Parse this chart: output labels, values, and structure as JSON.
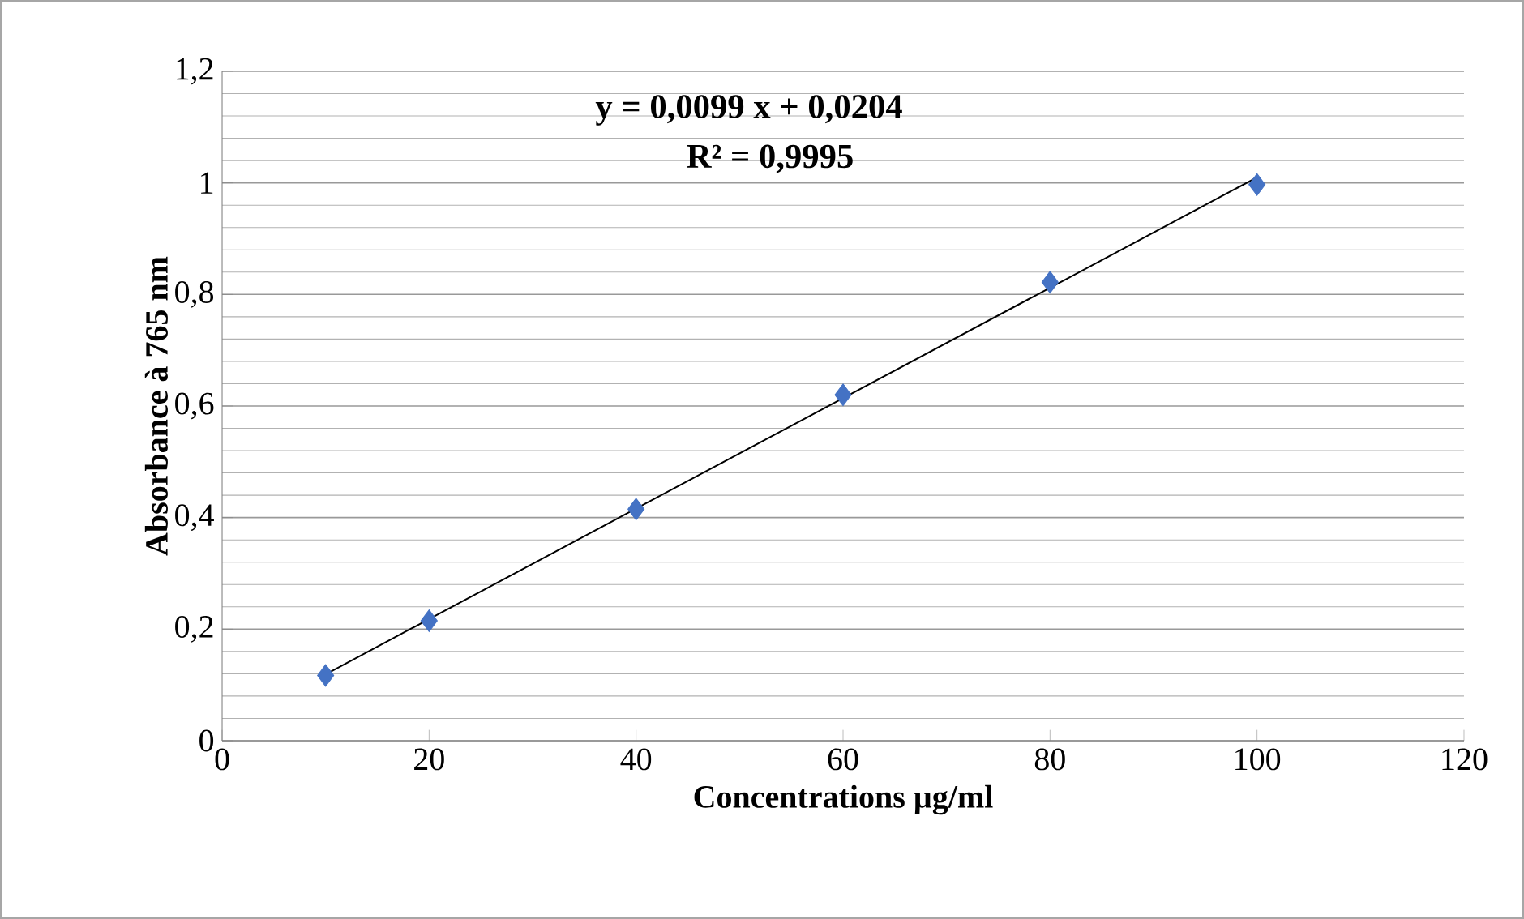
{
  "chart_data": {
    "type": "scatter",
    "xlabel": "Concentrations µg/ml",
    "ylabel": "Absorbance à 765 nm",
    "annotations": [
      "y = 0,0099 x + 0,0204",
      "R² = 0,9995"
    ],
    "series": [
      {
        "color": "#4472c4",
        "marker": "diamond",
        "x": [
          10,
          20,
          40,
          60,
          80,
          100
        ],
        "values": [
          0.117,
          0.215,
          0.415,
          0.62,
          0.822,
          0.997
        ]
      },
      {
        "type": "line",
        "color": "#000000",
        "marker": "none",
        "line_style": "solid",
        "x": [
          10,
          100
        ],
        "values": [
          0.119,
          1.01
        ]
      }
    ],
    "xlim": [
      0,
      120
    ],
    "ylim": [
      0,
      1.2
    ],
    "xticks": [
      0,
      20,
      40,
      60,
      80,
      100,
      120
    ],
    "yticks": [
      0,
      {
        "value": 0.2,
        "label": "0,2"
      },
      {
        "value": 0.4,
        "label": "0,4"
      },
      {
        "value": 0.6,
        "label": "0,6"
      },
      {
        "value": 0.8,
        "label": "0,8"
      },
      1,
      {
        "value": 1.2,
        "label": "1,2"
      }
    ],
    "grid": "y"
  }
}
